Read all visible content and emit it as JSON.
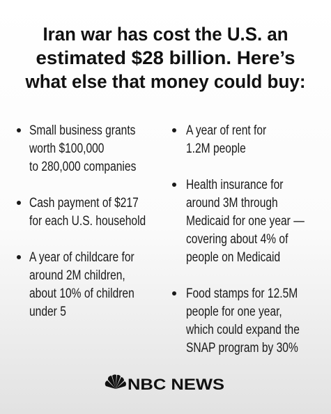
{
  "title": {
    "lines": [
      "Iran war has cost the U.S. an",
      "estimated $28 billion. Here’s",
      "what else that money could buy:"
    ]
  },
  "columns": [
    {
      "items": [
        {
          "lines": [
            "Small business grants",
            "worth $100,000",
            "to 280,000 companies"
          ]
        },
        {
          "lines": [
            "Cash payment of $217",
            "for each U.S. household"
          ]
        },
        {
          "lines": [
            "A year of childcare for",
            "around 2M children,",
            "about 10% of children",
            "under 5"
          ]
        }
      ]
    },
    {
      "items": [
        {
          "lines": [
            "A year of rent for",
            "1.2M people"
          ]
        },
        {
          "lines": [
            "Health insurance for",
            "around 3M through",
            "Medicaid for one year —",
            "covering about 4% of",
            "people on Medicaid"
          ]
        },
        {
          "lines": [
            "Food stamps for 12.5M",
            "people for one year,",
            "which could expand the",
            "SNAP program by 30%"
          ]
        }
      ]
    }
  ],
  "footer": {
    "brand": "NBC NEWS"
  }
}
